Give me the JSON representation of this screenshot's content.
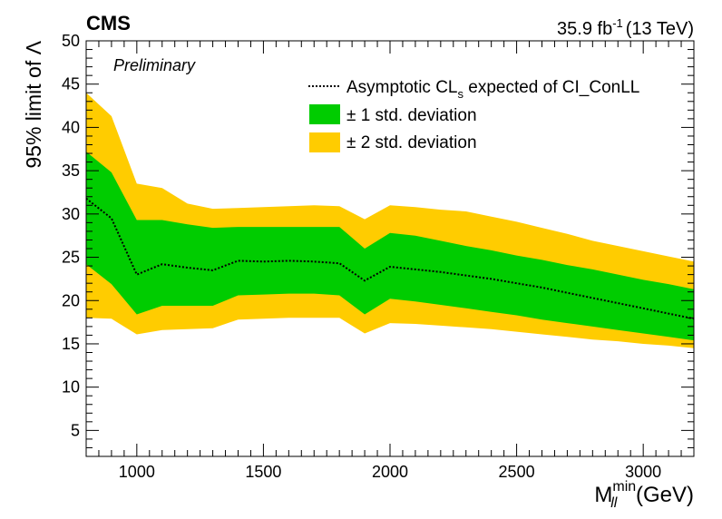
{
  "header": {
    "experiment": "CMS",
    "status": "Preliminary",
    "lumi_value": "35.9 fb",
    "lumi_exp": "-1",
    "energy": "(13 TeV)"
  },
  "legend": {
    "expected_pre": "Asymptotic CL",
    "expected_sub": "s",
    "expected_post": " expected of CI_ConLL",
    "one_sigma_label": "± 1 std. deviation",
    "two_sigma_label": "± 2 std. deviation"
  },
  "axes": {
    "ylabel": "95% limit of Λ",
    "xlabel_main": "M",
    "xlabel_sup": "min",
    "xlabel_sub": "ll",
    "xlabel_unit": " (GeV)"
  },
  "colors": {
    "one_sigma": "#00cc00",
    "two_sigma": "#ffcc00",
    "expected": "#000000"
  },
  "chart_data": {
    "type": "area",
    "xlim": [
      800,
      3200
    ],
    "ylim": [
      2,
      50
    ],
    "x_ticks": [
      1000,
      1500,
      2000,
      2500,
      3000
    ],
    "y_ticks": [
      5,
      10,
      15,
      20,
      25,
      30,
      35,
      40,
      45,
      50
    ],
    "grid": false,
    "legend_position": "top-right",
    "x": [
      800,
      900,
      1000,
      1100,
      1200,
      1300,
      1400,
      1500,
      1600,
      1700,
      1800,
      1900,
      2000,
      2100,
      2200,
      2300,
      2400,
      2500,
      2600,
      2700,
      2800,
      2900,
      3000,
      3100,
      3200
    ],
    "series": [
      {
        "role": "expected",
        "values": [
          31.8,
          29.5,
          23.0,
          24.2,
          23.8,
          23.5,
          24.6,
          24.5,
          24.6,
          24.5,
          24.3,
          22.3,
          23.9,
          23.6,
          23.3,
          22.9,
          22.5,
          22.0,
          21.5,
          20.9,
          20.3,
          19.7,
          19.1,
          18.5,
          17.9
        ]
      },
      {
        "role": "one_sigma_high",
        "values": [
          37.2,
          34.8,
          29.3,
          29.3,
          28.8,
          28.4,
          28.5,
          28.5,
          28.5,
          28.5,
          28.5,
          26.0,
          27.8,
          27.5,
          26.9,
          26.3,
          25.8,
          25.2,
          24.7,
          24.1,
          23.6,
          23.0,
          22.4,
          21.9,
          21.3
        ]
      },
      {
        "role": "one_sigma_low",
        "values": [
          24.2,
          21.9,
          18.4,
          19.4,
          19.4,
          19.4,
          20.6,
          20.7,
          20.8,
          20.8,
          20.6,
          18.4,
          20.2,
          19.9,
          19.5,
          19.1,
          18.7,
          18.3,
          17.8,
          17.4,
          17.0,
          16.6,
          16.2,
          15.8,
          15.4
        ]
      },
      {
        "role": "two_sigma_high",
        "values": [
          44.0,
          41.3,
          33.5,
          33.0,
          31.2,
          30.6,
          30.7,
          30.8,
          30.9,
          31.0,
          30.9,
          29.4,
          31.0,
          30.8,
          30.5,
          30.3,
          29.7,
          29.1,
          28.4,
          27.7,
          26.9,
          26.3,
          25.7,
          25.1,
          24.5
        ]
      },
      {
        "role": "two_sigma_low",
        "values": [
          18.0,
          17.9,
          16.1,
          16.6,
          16.7,
          16.8,
          17.8,
          17.9,
          18.0,
          18.0,
          18.0,
          16.2,
          17.4,
          17.3,
          17.1,
          16.9,
          16.7,
          16.4,
          16.1,
          15.8,
          15.5,
          15.3,
          15.0,
          14.8,
          14.5
        ]
      }
    ]
  }
}
